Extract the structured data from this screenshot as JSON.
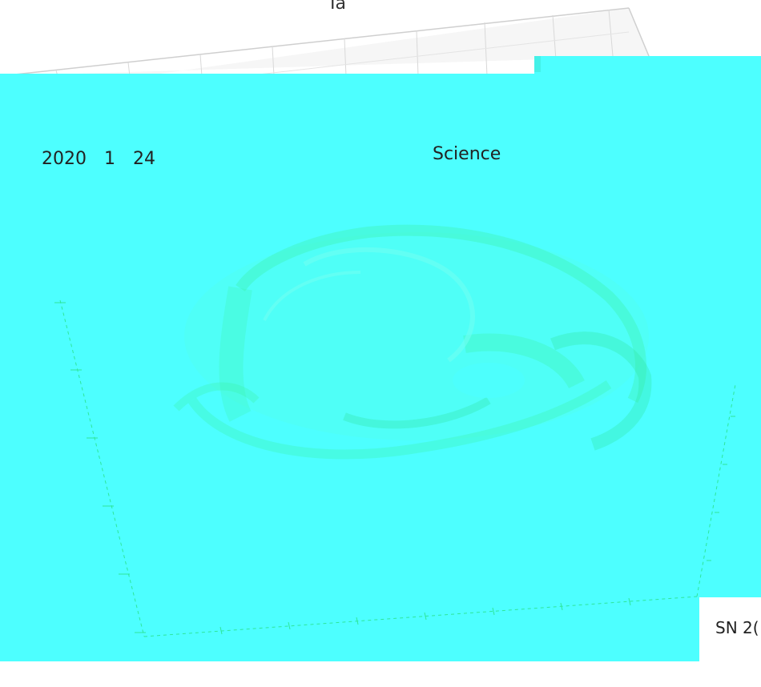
{
  "top_label": "Ia",
  "overlay": {
    "date_text": "2020　1　24",
    "journal_text": "Science"
  },
  "corner_label": "SN 2(",
  "colors": {
    "background": "#ffffff",
    "overlay_fill": "#4dffff",
    "nebula_tint": "#3cf2a6",
    "axis_tick": "#2ee69a",
    "grid_line": "#d8d8d8"
  }
}
